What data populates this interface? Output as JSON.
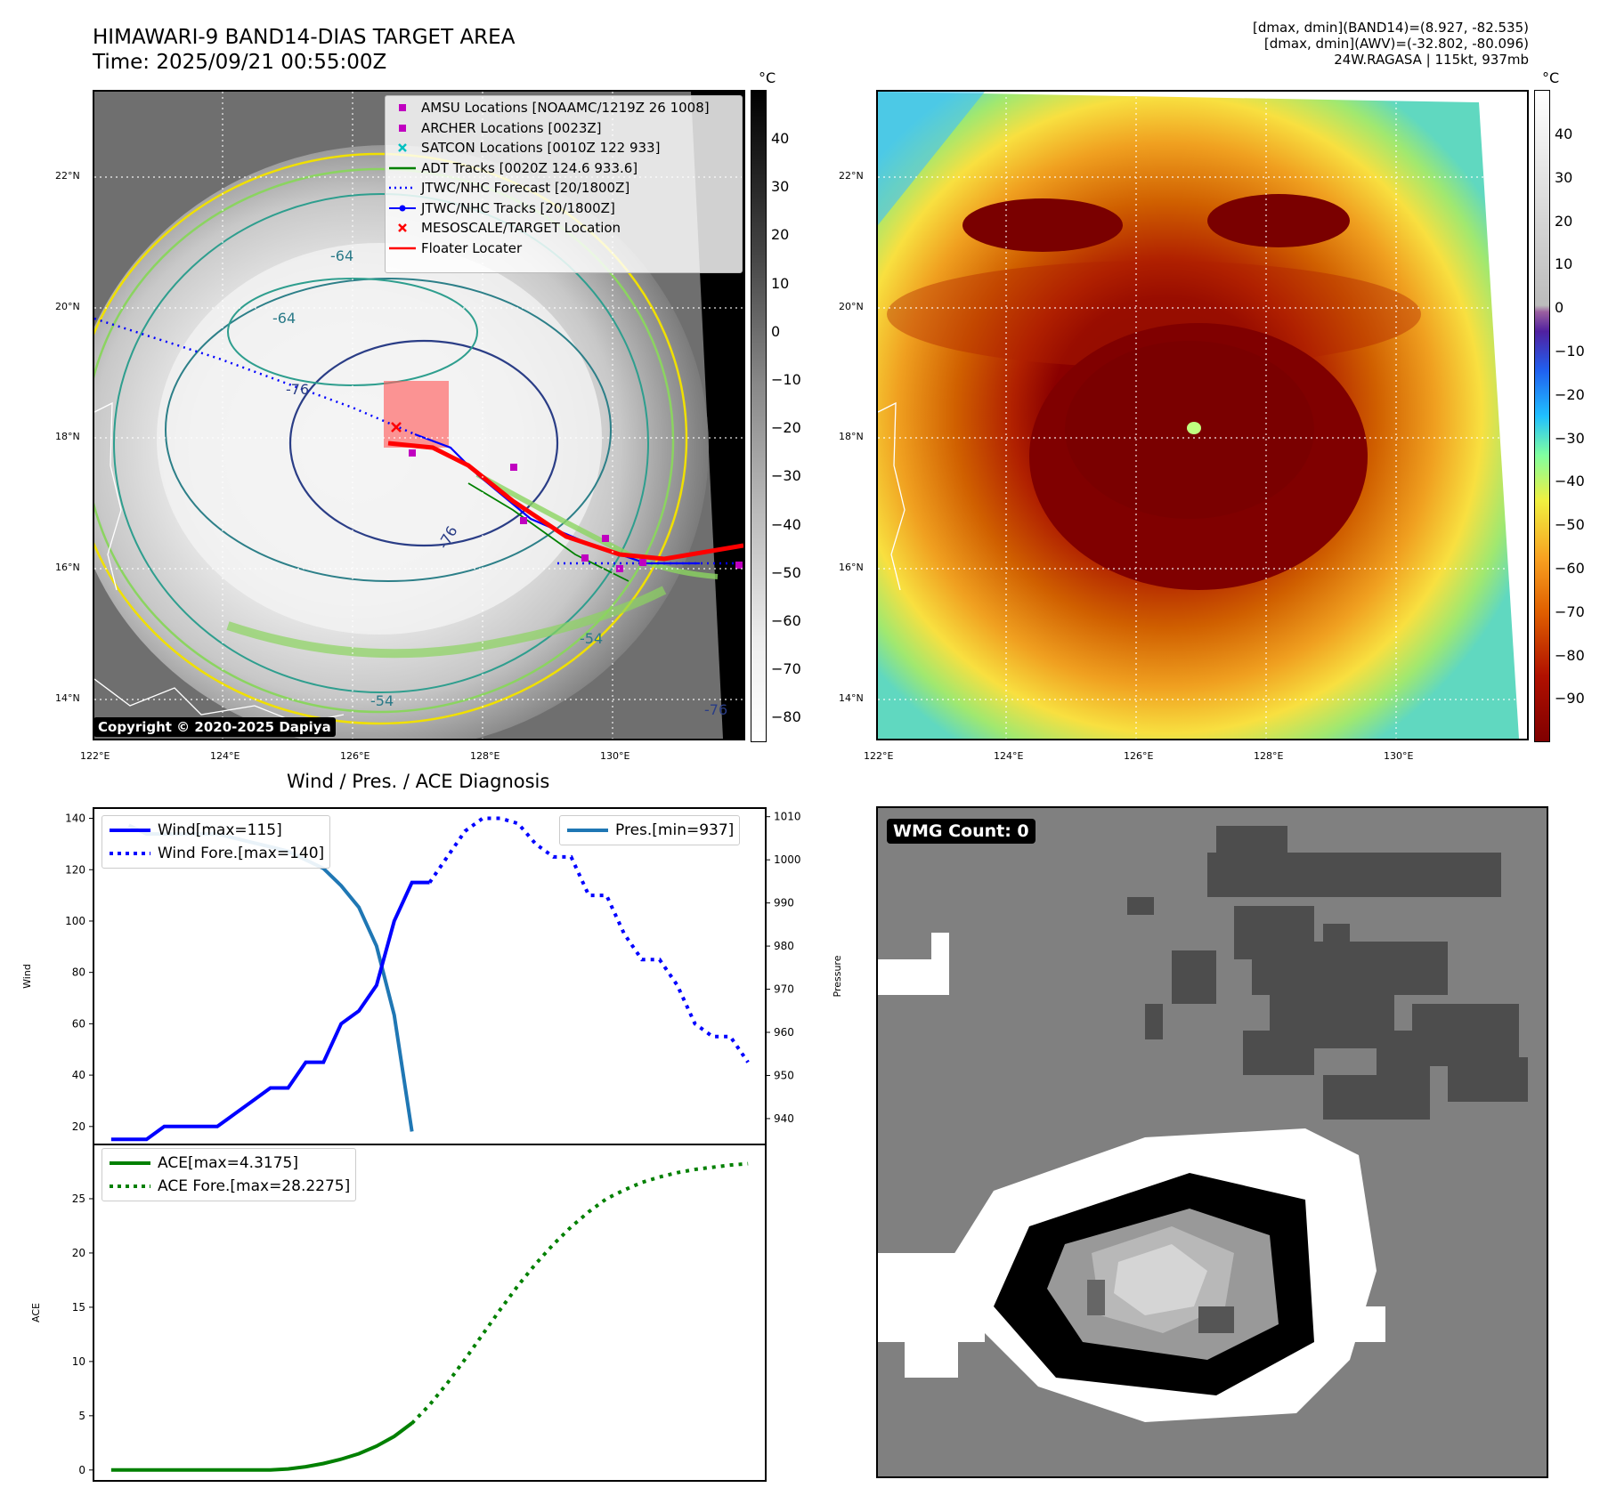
{
  "header": {
    "title_line1": "HIMAWARI-9 BAND14-DIAS TARGET AREA",
    "title_line2": "Time: 2025/09/21 00:55:00Z",
    "stats_line1": "[dmax, dmin](BAND14)=(8.927, -82.535)",
    "stats_line2": "[dmax, dmin](AWV)=(-32.802, -80.096)",
    "stats_line3": "24W.RAGASA | 115kt, 937mb"
  },
  "map": {
    "lat_labels": [
      "22°N",
      "20°N",
      "18°N",
      "16°N",
      "14°N"
    ],
    "lon_labels": [
      "122°E",
      "124°E",
      "126°E",
      "128°E",
      "130°E"
    ],
    "copyright": "Copyright © 2020-2025 Dapiya",
    "contour_labels": [
      "-64",
      "-64",
      "-76",
      "-76",
      "-54",
      "-54",
      "-76"
    ],
    "legend": [
      {
        "label": "AMSU Locations [NOAAMC/1219Z 26 1008]",
        "symbol": "square",
        "color": "#c000c0"
      },
      {
        "label": "ARCHER Locations [0023Z]",
        "symbol": "square",
        "color": "#c000c0"
      },
      {
        "label": "SATCON Locations [0010Z 122 933]",
        "symbol": "x",
        "color": "#00c0c0"
      },
      {
        "label": "ADT Tracks [0020Z 124.6 933.6]",
        "symbol": "line",
        "color": "#008000"
      },
      {
        "label": "JTWC/NHC Forecast [20/1800Z]",
        "symbol": "dotted",
        "color": "#0000ff"
      },
      {
        "label": "JTWC/NHC Tracks [20/1800Z]",
        "symbol": "line-dot",
        "color": "#0000ff"
      },
      {
        "label": "MESOSCALE/TARGET Location",
        "symbol": "x",
        "color": "#ff0000"
      },
      {
        "label": "Floater Locater",
        "symbol": "line",
        "color": "#ff0000"
      }
    ]
  },
  "colorbar_gray": {
    "unit": "°C",
    "ticks": [
      "40",
      "30",
      "20",
      "10",
      "0",
      "−10",
      "−20",
      "−30",
      "−40",
      "−50",
      "−60",
      "−70",
      "−80"
    ]
  },
  "colorbar_color": {
    "unit": "°C",
    "ticks": [
      "40",
      "30",
      "20",
      "10",
      "0",
      "−10",
      "−20",
      "−30",
      "−40",
      "−50",
      "−60",
      "−70",
      "−80",
      "−90"
    ]
  },
  "chart_data": [
    {
      "type": "line",
      "title": "Wind / Pres. / ACE Diagnosis",
      "ylabel": "Wind",
      "y2label": "Pressure",
      "ylim": [
        13,
        144
      ],
      "y2lim": [
        934,
        1012
      ],
      "yticks": [
        "140",
        "120",
        "100",
        "80",
        "60",
        "40",
        "20"
      ],
      "y2ticks": [
        "1010",
        "1000",
        "990",
        "980",
        "970",
        "960",
        "950",
        "940"
      ],
      "series": [
        {
          "name": "Wind[max=115]",
          "style": "solid",
          "color": "#0000ff",
          "axis": "left",
          "x": [
            0,
            1,
            2,
            3,
            4,
            5,
            6,
            7,
            8,
            9,
            10,
            11,
            12,
            13,
            14,
            15,
            16,
            17,
            18
          ],
          "y": [
            15,
            15,
            15,
            20,
            20,
            20,
            20,
            25,
            30,
            35,
            35,
            45,
            45,
            60,
            65,
            75,
            100,
            115,
            115
          ]
        },
        {
          "name": "Wind Fore.[max=140]",
          "style": "dotted",
          "color": "#0000ff",
          "axis": "left",
          "x": [
            18,
            19,
            20,
            21,
            22,
            23,
            24,
            25,
            26,
            27,
            28,
            29,
            30,
            31,
            32,
            33,
            34,
            35,
            36
          ],
          "y": [
            115,
            125,
            135,
            140,
            140,
            138,
            130,
            125,
            125,
            110,
            110,
            95,
            85,
            85,
            75,
            60,
            55,
            55,
            45
          ]
        },
        {
          "name": "Pres.[min=937]",
          "style": "solid",
          "color": "#1f77b4",
          "axis": "right",
          "x": [
            1,
            2,
            3,
            4,
            5,
            6,
            7,
            8,
            9,
            10,
            11,
            12,
            13,
            14,
            15,
            16,
            17
          ],
          "y": [
            1008,
            1006,
            1006,
            1006,
            1006,
            1006,
            1005,
            1004,
            1003,
            1002,
            1000,
            998,
            994,
            989,
            980,
            964,
            937
          ]
        }
      ]
    },
    {
      "type": "line",
      "ylabel": "ACE",
      "ylim": [
        -1,
        30
      ],
      "yticks": [
        "25",
        "20",
        "15",
        "10",
        "5",
        "0"
      ],
      "series": [
        {
          "name": "ACE[max=4.3175]",
          "style": "solid",
          "color": "#008000",
          "x": [
            0,
            2,
            4,
            6,
            8,
            9,
            10,
            11,
            12,
            13,
            14,
            15,
            16,
            17
          ],
          "y": [
            0,
            0,
            0,
            0,
            0,
            0,
            0.1,
            0.3,
            0.6,
            1.0,
            1.5,
            2.2,
            3.1,
            4.3175
          ]
        },
        {
          "name": "ACE Fore.[max=28.2275]",
          "style": "dotted",
          "color": "#008000",
          "x": [
            17,
            18,
            19,
            20,
            21,
            22,
            23,
            24,
            25,
            26,
            27,
            28,
            29,
            30,
            31,
            32,
            33,
            34,
            35,
            36
          ],
          "y": [
            4.3,
            6.0,
            8.0,
            10.2,
            12.5,
            14.8,
            17.0,
            19.0,
            20.8,
            22.4,
            23.8,
            25.0,
            25.8,
            26.5,
            27.0,
            27.4,
            27.7,
            27.9,
            28.1,
            28.2275
          ]
        }
      ]
    }
  ],
  "wmg": {
    "label": "WMG Count: 0"
  }
}
